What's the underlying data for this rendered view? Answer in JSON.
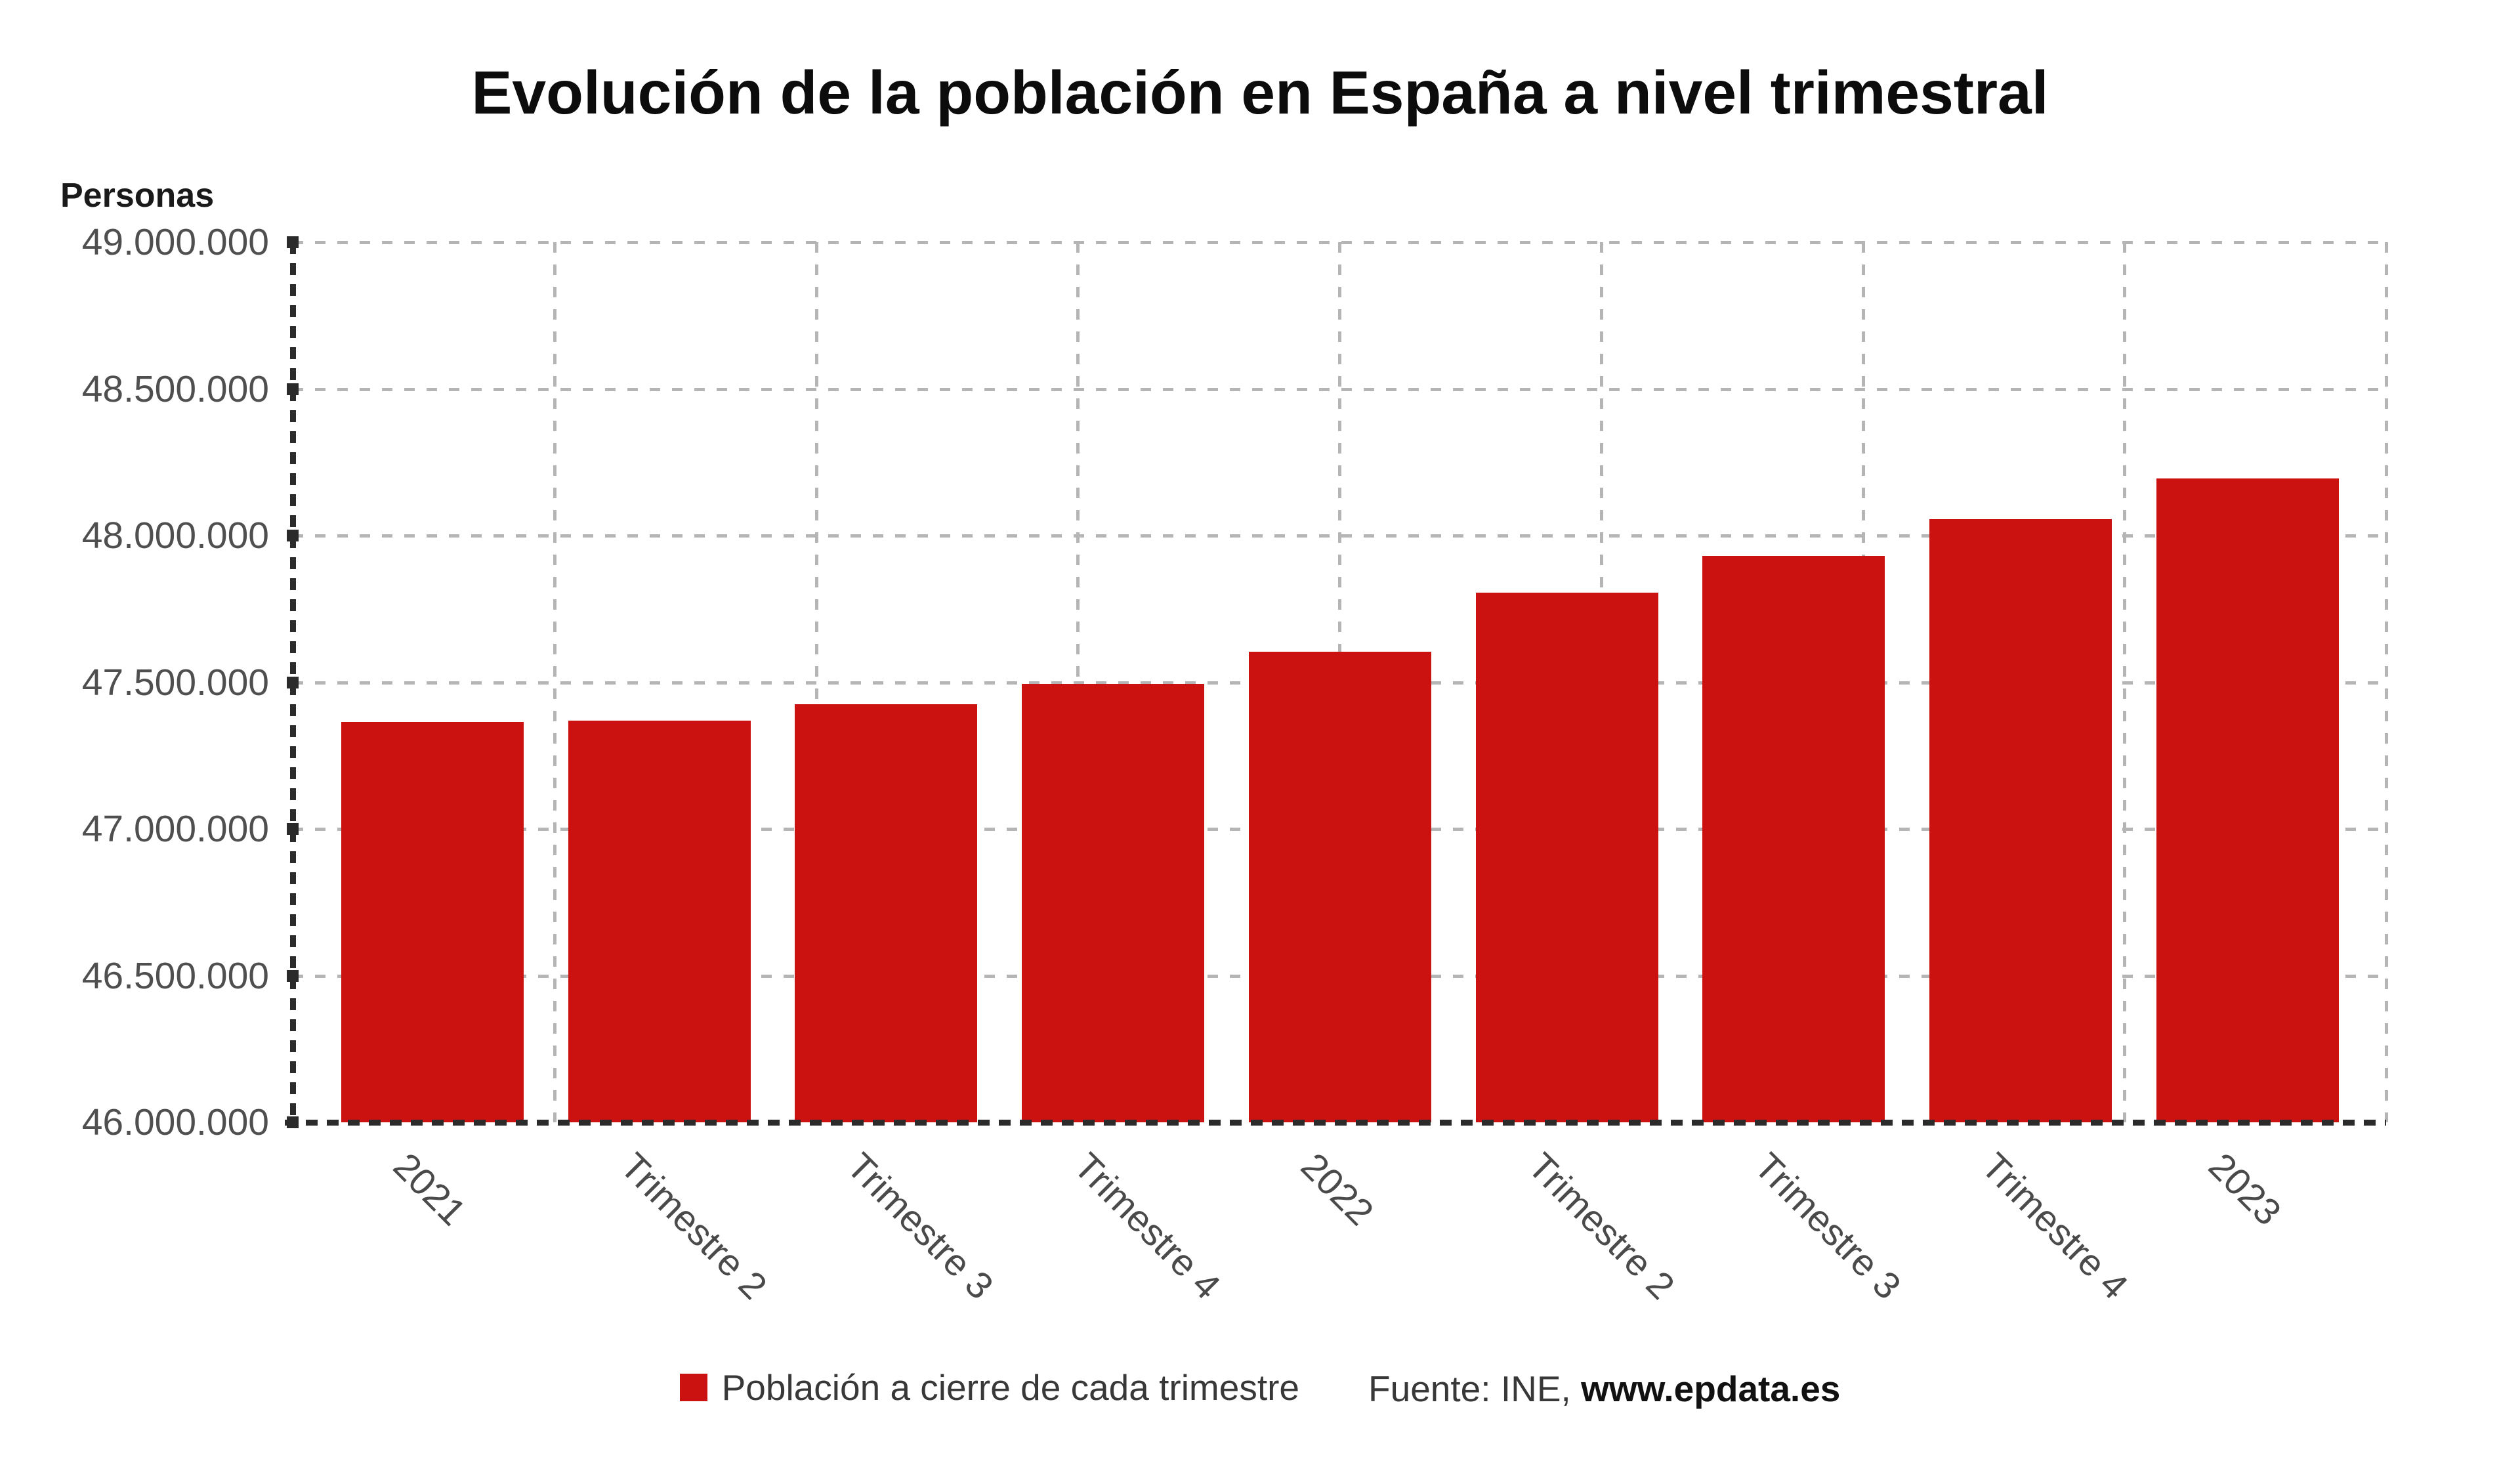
{
  "title": "Evolución de la población en España a nivel trimestral",
  "y_axis_title": "Personas",
  "legend": {
    "series_label": "Población a cierre de cada trimestre",
    "source_prefix": "Fuente: INE, ",
    "source_site": "www.epdata.es"
  },
  "colors": {
    "bar": "#cc1111",
    "grid": "#b5b5b5",
    "axis": "#2b2b2b",
    "tick_label": "#4f4f4f",
    "title": "#0c0c0c"
  },
  "chart_data": {
    "type": "bar",
    "title": "Evolución de la población en España a nivel trimestral",
    "xlabel": "",
    "ylabel": "Personas",
    "categories": [
      "2021",
      "Trimestre 2",
      "Trimestre 3",
      "Trimestre 4",
      "2022",
      "Trimestre 2",
      "Trimestre 3",
      "Trimestre 4",
      "2023"
    ],
    "values": [
      47365000,
      47370000,
      47425000,
      47495000,
      47605000,
      47805000,
      47930000,
      48055000,
      48195000
    ],
    "series_name": "Población a cierre de cada trimestre",
    "ylim": [
      46000000,
      49000000
    ],
    "ytick_step": 500000,
    "ytick_labels": [
      "49.000.000",
      "48.500.000",
      "48.000.000",
      "47.500.000",
      "47.000.000",
      "46.500.000",
      "46.000.000"
    ],
    "grid": true,
    "legend_position": "bottom",
    "bar_color": "#cc1111"
  }
}
